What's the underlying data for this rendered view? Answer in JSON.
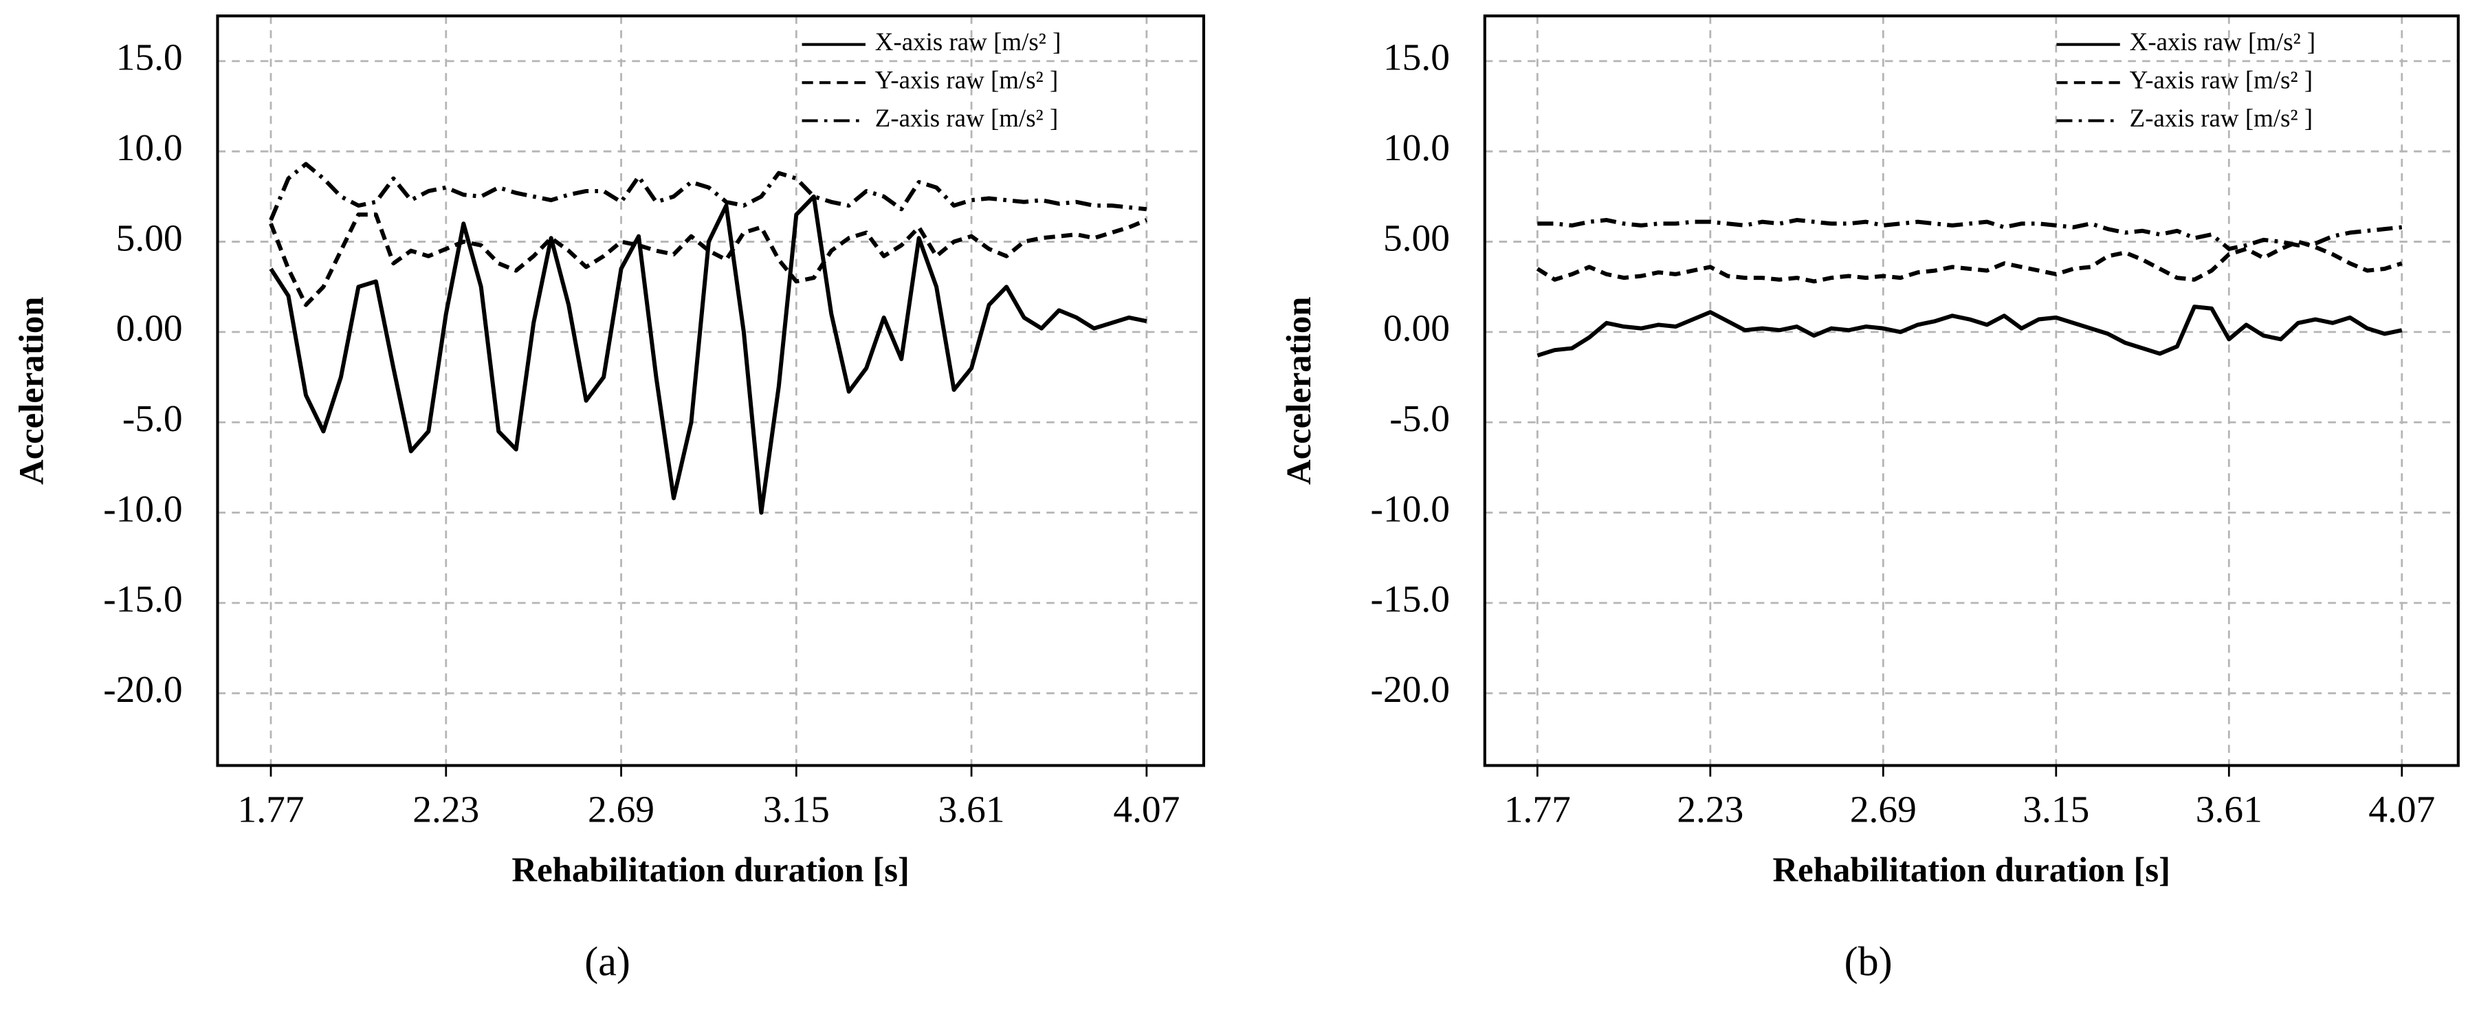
{
  "chart_data": [
    {
      "type": "line",
      "label": "(a)",
      "x_label": "Rehabilitation duration [s]",
      "y_label": "Acceleration",
      "x": [
        1.77,
        1.816,
        1.862,
        1.908,
        1.954,
        2.0,
        2.046,
        2.092,
        2.138,
        2.184,
        2.23,
        2.276,
        2.322,
        2.368,
        2.414,
        2.46,
        2.506,
        2.552,
        2.598,
        2.644,
        2.69,
        2.736,
        2.782,
        2.828,
        2.874,
        2.92,
        2.966,
        3.012,
        3.058,
        3.104,
        3.15,
        3.196,
        3.242,
        3.288,
        3.334,
        3.38,
        3.426,
        3.472,
        3.518,
        3.564,
        3.61,
        3.656,
        3.702,
        3.748,
        3.794,
        3.84,
        3.886,
        3.932,
        3.978,
        4.024,
        4.07
      ],
      "series": [
        {
          "name": "X-axis raw [m/s² ]",
          "color": "#000000",
          "linestyle": "solid",
          "values": [
            3.5,
            2.0,
            -3.5,
            -5.5,
            -2.5,
            2.5,
            2.8,
            -2,
            -6.6,
            -5.5,
            1,
            6.0,
            2.5,
            -5.5,
            -6.5,
            0.5,
            5.2,
            1.5,
            -3.8,
            -2.5,
            3.5,
            5.3,
            -2.5,
            -9.2,
            -5,
            5,
            7,
            0,
            -10,
            -3,
            6.5,
            7.5,
            1,
            -3.3,
            -2,
            0.8,
            -1.5,
            5.2,
            2.5,
            -3.2,
            -2,
            1.5,
            2.5,
            0.8,
            0.2,
            1.2,
            0.8,
            0.2,
            0.5,
            0.8,
            0.6
          ]
        },
        {
          "name": "Y-axis raw [m/s² ]",
          "color": "#000000",
          "linestyle": "dashed",
          "values": [
            6.0,
            3.5,
            1.5,
            2.5,
            4.5,
            6.5,
            6.5,
            3.8,
            4.5,
            4.2,
            4.6,
            5.0,
            4.8,
            3.8,
            3.4,
            4.2,
            5.2,
            4.5,
            3.6,
            4.2,
            5.0,
            4.8,
            4.5,
            4.3,
            5.3,
            4.5,
            4.0,
            5.5,
            5.8,
            4.0,
            2.8,
            3.0,
            4.5,
            5.2,
            5.5,
            4.2,
            4.8,
            5.8,
            4.2,
            5.0,
            5.3,
            4.6,
            4.2,
            5.0,
            5.2,
            5.3,
            5.4,
            5.2,
            5.5,
            5.8,
            6.2
          ]
        },
        {
          "name": "Z-axis raw [m/s² ]",
          "color": "#000000",
          "linestyle": "dashdot",
          "values": [
            6.2,
            8.5,
            9.3,
            8.5,
            7.5,
            7.0,
            7.2,
            8.5,
            7.3,
            7.8,
            8.0,
            7.6,
            7.5,
            8.0,
            7.7,
            7.5,
            7.3,
            7.6,
            7.8,
            7.8,
            7.2,
            8.6,
            7.2,
            7.5,
            8.3,
            8.0,
            7.2,
            7.0,
            7.5,
            8.8,
            8.5,
            7.5,
            7.2,
            7.0,
            7.8,
            7.5,
            6.8,
            8.3,
            8.0,
            7.0,
            7.3,
            7.4,
            7.3,
            7.2,
            7.3,
            7.1,
            7.2,
            7.0,
            7.0,
            6.9,
            6.8
          ]
        }
      ],
      "xlim": [
        1.63,
        4.22
      ],
      "xticks": [
        1.77,
        2.23,
        2.69,
        3.15,
        3.61,
        4.07
      ],
      "ylim": [
        -24,
        17.5
      ],
      "yticks": [
        {
          "value": 15,
          "label": "15.0"
        },
        {
          "value": 10,
          "label": "10.0"
        },
        {
          "value": 5,
          "label": "5.00"
        },
        {
          "value": 0,
          "label": "0.00"
        },
        {
          "value": -5,
          "label": "-5.0"
        },
        {
          "value": -10,
          "label": "-10.0"
        },
        {
          "value": -15,
          "label": "-15.0"
        },
        {
          "value": -20,
          "label": "-20.0"
        }
      ],
      "grid": true,
      "legend": "upper right"
    },
    {
      "type": "line",
      "label": "(b)",
      "x_label": "Rehabilitation duration [s]",
      "y_label": "Acceleration",
      "x": [
        1.77,
        1.816,
        1.862,
        1.908,
        1.954,
        2.0,
        2.046,
        2.092,
        2.138,
        2.184,
        2.23,
        2.276,
        2.322,
        2.368,
        2.414,
        2.46,
        2.506,
        2.552,
        2.598,
        2.644,
        2.69,
        2.736,
        2.782,
        2.828,
        2.874,
        2.92,
        2.966,
        3.012,
        3.058,
        3.104,
        3.15,
        3.196,
        3.242,
        3.288,
        3.334,
        3.38,
        3.426,
        3.472,
        3.518,
        3.564,
        3.61,
        3.656,
        3.702,
        3.748,
        3.794,
        3.84,
        3.886,
        3.932,
        3.978,
        4.024,
        4.07
      ],
      "series": [
        {
          "name": "X-axis raw [m/s² ]",
          "color": "#000000",
          "linestyle": "solid",
          "values": [
            -1.3,
            -1.0,
            -0.9,
            -0.3,
            0.5,
            0.3,
            0.2,
            0.4,
            0.3,
            0.7,
            1.1,
            0.6,
            0.1,
            0.2,
            0.1,
            0.3,
            -0.2,
            0.2,
            0.1,
            0.3,
            0.2,
            0.0,
            0.4,
            0.6,
            0.9,
            0.7,
            0.4,
            0.9,
            0.2,
            0.7,
            0.8,
            0.5,
            0.2,
            -0.1,
            -0.6,
            -0.9,
            -1.2,
            -0.8,
            1.4,
            1.3,
            -0.4,
            0.4,
            -0.2,
            -0.4,
            0.5,
            0.7,
            0.5,
            0.8,
            0.2,
            -0.1,
            0.1
          ]
        },
        {
          "name": "Y-axis raw [m/s² ]",
          "color": "#000000",
          "linestyle": "dashed",
          "values": [
            3.5,
            2.9,
            3.2,
            3.6,
            3.2,
            3.0,
            3.1,
            3.3,
            3.2,
            3.4,
            3.6,
            3.1,
            3.0,
            3.0,
            2.9,
            3.0,
            2.8,
            3.0,
            3.1,
            3.0,
            3.1,
            3.0,
            3.3,
            3.4,
            3.6,
            3.5,
            3.4,
            3.8,
            3.6,
            3.4,
            3.2,
            3.5,
            3.6,
            4.2,
            4.4,
            4.0,
            3.5,
            3.0,
            2.9,
            3.4,
            4.3,
            4.6,
            4.1,
            4.6,
            5.0,
            4.7,
            4.3,
            3.8,
            3.4,
            3.5,
            3.8
          ]
        },
        {
          "name": "Z-axis raw [m/s² ]",
          "color": "#000000",
          "linestyle": "dashdot",
          "values": [
            6.0,
            6.0,
            5.9,
            6.1,
            6.2,
            6.0,
            5.9,
            6.0,
            6.0,
            6.1,
            6.1,
            6.0,
            5.9,
            6.1,
            6.0,
            6.2,
            6.1,
            6.0,
            6.0,
            6.1,
            5.9,
            6.0,
            6.1,
            6.0,
            5.9,
            6.0,
            6.1,
            5.8,
            6.0,
            6.0,
            5.9,
            5.8,
            6.0,
            5.7,
            5.5,
            5.6,
            5.4,
            5.6,
            5.2,
            5.4,
            4.6,
            4.8,
            5.1,
            5.0,
            4.8,
            4.9,
            5.3,
            5.5,
            5.6,
            5.7,
            5.8
          ]
        }
      ],
      "xlim": [
        1.63,
        4.22
      ],
      "xticks": [
        1.77,
        2.23,
        2.69,
        3.15,
        3.61,
        4.07
      ],
      "ylim": [
        -24,
        17.5
      ],
      "yticks": [
        {
          "value": 15,
          "label": "15.0"
        },
        {
          "value": 10,
          "label": "10.0"
        },
        {
          "value": 5,
          "label": "5.00"
        },
        {
          "value": 0,
          "label": "0.00"
        },
        {
          "value": -5,
          "label": "-5.0"
        },
        {
          "value": -10,
          "label": "-10.0"
        },
        {
          "value": -15,
          "label": "-15.0"
        },
        {
          "value": -20,
          "label": "-20.0"
        }
      ],
      "grid": true,
      "legend": "upper right"
    }
  ]
}
